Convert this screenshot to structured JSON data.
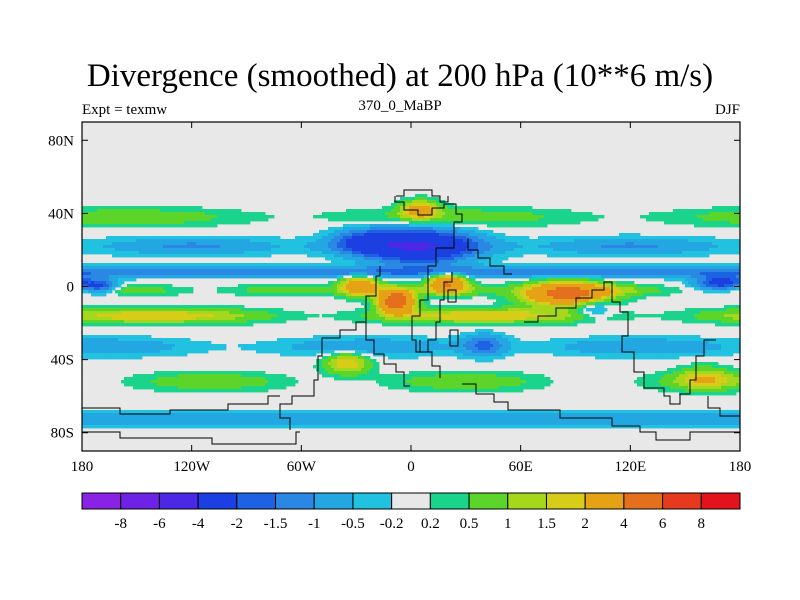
{
  "chart_data": {
    "type": "heatmap",
    "title": "Divergence (smoothed) at 200 hPa (10**6 m/s)",
    "subtitle_left": "Expt = texmw",
    "subtitle_center": "370_0_MaBP",
    "subtitle_right": "DJF",
    "xlim": [
      -180,
      180
    ],
    "ylim": [
      -90,
      90
    ],
    "x_ticks": [
      {
        "value": -180,
        "label": "180"
      },
      {
        "value": -120,
        "label": "120W"
      },
      {
        "value": -60,
        "label": "60W"
      },
      {
        "value": 0,
        "label": "0"
      },
      {
        "value": 60,
        "label": "60E"
      },
      {
        "value": 120,
        "label": "120E"
      },
      {
        "value": 180,
        "label": "180"
      }
    ],
    "y_ticks": [
      {
        "value": 80,
        "label": "80N"
      },
      {
        "value": 40,
        "label": "40N"
      },
      {
        "value": 0,
        "label": "0"
      },
      {
        "value": -40,
        "label": "40S"
      },
      {
        "value": -80,
        "label": "80S"
      }
    ],
    "colorbar": {
      "levels": [
        "-8",
        "-6",
        "-4",
        "-2",
        "-1.5",
        "-1",
        "-0.5",
        "-0.2",
        "0.2",
        "0.5",
        "1",
        "1.5",
        "2",
        "4",
        "6",
        "8"
      ],
      "colors": [
        "#8a22e6",
        "#6d22e6",
        "#4b27e6",
        "#1b3fe0",
        "#1c62e2",
        "#2a88e4",
        "#23a7e3",
        "#21c2e0",
        "#e8e8e8",
        "#1ad48c",
        "#5bd52a",
        "#a5d81c",
        "#d7cc17",
        "#e5a215",
        "#e46f1c",
        "#e53a1d",
        "#e3131d"
      ],
      "values": [
        -10,
        -7,
        -5,
        -3,
        -1.75,
        -1.25,
        -0.75,
        -0.35,
        0,
        0.35,
        0.75,
        1.25,
        1.75,
        3,
        5,
        7,
        10
      ]
    },
    "field_features": [
      {
        "name": "subtropical jet divergence band NH",
        "lon_range": [
          -180,
          180
        ],
        "lat": 35,
        "value": 0.6
      },
      {
        "name": "strong convergence over North Africa / Arabia",
        "lon": 5,
        "lat": 22,
        "value": -3
      },
      {
        "name": "strong convergence subtropical North Pacific",
        "lon": -150,
        "lat": 20,
        "value": -1.2
      },
      {
        "name": "tropical convergence band",
        "lon_range": [
          -180,
          180
        ],
        "lat": 10,
        "value": -1.3
      },
      {
        "name": "equatorial divergence band",
        "lon_range": [
          -180,
          180
        ],
        "lat": 0,
        "value": 0.8
      },
      {
        "name": "strong divergence tropical South America",
        "lon": -10,
        "lat": -10,
        "value": 7
      },
      {
        "name": "strong divergence tropical Africa/Indian Ocean",
        "lon": 80,
        "lat": -5,
        "value": 6
      },
      {
        "name": "divergence band southern subtropics",
        "lon_range": [
          -180,
          180
        ],
        "lat": -15,
        "value": 2.5
      },
      {
        "name": "convergence band Southern Hemisphere",
        "lon_range": [
          -180,
          180
        ],
        "lat": -35,
        "value": -0.8
      },
      {
        "name": "southern divergence band",
        "lon_range": [
          -180,
          180
        ],
        "lat": -55,
        "value": 0.7
      },
      {
        "name": "Antarctic convergence band",
        "lon_range": [
          -180,
          180
        ],
        "lat": -72,
        "value": -0.8
      }
    ]
  }
}
